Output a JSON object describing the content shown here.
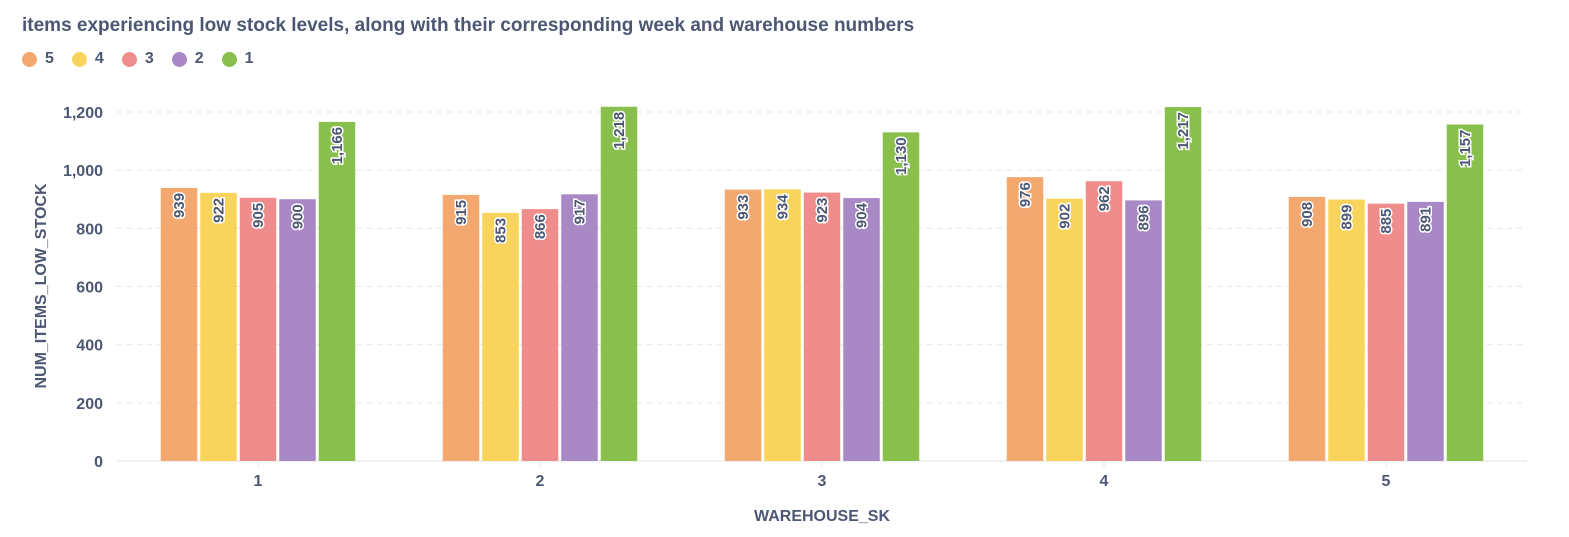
{
  "chart_data": {
    "type": "bar",
    "title": "items experiencing low stock levels, along with their corresponding week and warehouse numbers",
    "xlabel": "WAREHOUSE_SK",
    "ylabel": "NUM_ITEMS_LOW_STOCK",
    "categories": [
      "1",
      "2",
      "3",
      "4",
      "5"
    ],
    "ylim": [
      0,
      1200
    ],
    "yticks": [
      0,
      200,
      400,
      600,
      800,
      "1,000",
      "1,200"
    ],
    "ytick_values": [
      0,
      200,
      400,
      600,
      800,
      1000,
      1200
    ],
    "grid": true,
    "legend_position": "top-left",
    "series": [
      {
        "name": "5",
        "color": "#f2a86f",
        "values": [
          939,
          915,
          933,
          976,
          908
        ],
        "labels": [
          "939",
          "915",
          "933",
          "976",
          "908"
        ]
      },
      {
        "name": "4",
        "color": "#f9d45c",
        "values": [
          922,
          853,
          934,
          902,
          899
        ],
        "labels": [
          "922",
          "853",
          "934",
          "902",
          "899"
        ]
      },
      {
        "name": "3",
        "color": "#ef8c8c",
        "values": [
          905,
          866,
          923,
          962,
          885
        ],
        "labels": [
          "905",
          "866",
          "923",
          "962",
          "885"
        ]
      },
      {
        "name": "2",
        "color": "#a989c5",
        "values": [
          900,
          917,
          904,
          896,
          891
        ],
        "labels": [
          "900",
          "917",
          "904",
          "896",
          "891"
        ]
      },
      {
        "name": "1",
        "color": "#88bf4d",
        "values": [
          1166,
          1218,
          1130,
          1217,
          1157
        ],
        "labels": [
          "1,166",
          "1,218",
          "1,130",
          "1,217",
          "1,157"
        ]
      }
    ]
  }
}
